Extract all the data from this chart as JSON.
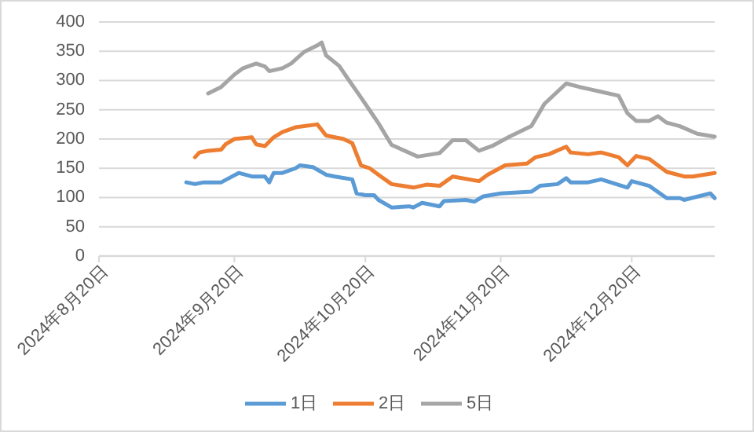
{
  "chart_data": {
    "type": "line",
    "xlim": [
      "2024-08-20",
      "2025-01-08"
    ],
    "xticks": [
      {
        "value": "2024-08-20",
        "label": "2024年8月20日"
      },
      {
        "value": "2024-09-20",
        "label": "2024年9月20日"
      },
      {
        "value": "2024-10-20",
        "label": "2024年10月20日"
      },
      {
        "value": "2024-11-20",
        "label": "2024年11月20日"
      },
      {
        "value": "2024-12-20",
        "label": "2024年12月20日"
      }
    ],
    "ylim": [
      0,
      400
    ],
    "yticks": [
      0,
      50,
      100,
      150,
      200,
      250,
      300,
      350,
      400
    ],
    "grid": "y",
    "legend": "bottom",
    "marker": "none",
    "line_style": "solid",
    "series": [
      {
        "name": "1日",
        "color": "#5b9bd5",
        "x": [
          "2024-09-09",
          "2024-09-11",
          "2024-09-13",
          "2024-09-17",
          "2024-09-19",
          "2024-09-21",
          "2024-09-24",
          "2024-09-27",
          "2024-09-28",
          "2024-09-29",
          "2024-10-01",
          "2024-10-04",
          "2024-10-05",
          "2024-10-08",
          "2024-10-11",
          "2024-10-13",
          "2024-10-17",
          "2024-10-18",
          "2024-10-20",
          "2024-10-22",
          "2024-10-23",
          "2024-10-26",
          "2024-10-30",
          "2024-10-31",
          "2024-11-02",
          "2024-11-06",
          "2024-11-07",
          "2024-11-12",
          "2024-11-14",
          "2024-11-16",
          "2024-11-20",
          "2024-11-27",
          "2024-11-29",
          "2024-12-03",
          "2024-12-05",
          "2024-12-06",
          "2024-12-10",
          "2024-12-13",
          "2024-12-19",
          "2024-12-20",
          "2024-12-24",
          "2024-12-28",
          "2024-12-31",
          "2025-01-01",
          "2025-01-07",
          "2025-01-08"
        ],
        "values": [
          126,
          123,
          126,
          126,
          134,
          142,
          136,
          136,
          126,
          142,
          142,
          150,
          155,
          152,
          139,
          136,
          131,
          107,
          104,
          104,
          96,
          83,
          85,
          83,
          91,
          85,
          94,
          96,
          93,
          102,
          107,
          110,
          120,
          123,
          133,
          126,
          126,
          131,
          117,
          128,
          120,
          99,
          99,
          96,
          107,
          99
        ]
      },
      {
        "name": "2日",
        "color": "#ed7d31",
        "x": [
          "2024-09-11",
          "2024-09-12",
          "2024-09-14",
          "2024-09-17",
          "2024-09-18",
          "2024-09-20",
          "2024-09-24",
          "2024-09-25",
          "2024-09-27",
          "2024-09-29",
          "2024-10-01",
          "2024-10-04",
          "2024-10-09",
          "2024-10-11",
          "2024-10-15",
          "2024-10-17",
          "2024-10-19",
          "2024-10-21",
          "2024-10-23",
          "2024-10-26",
          "2024-10-31",
          "2024-11-03",
          "2024-11-06",
          "2024-11-09",
          "2024-11-15",
          "2024-11-17",
          "2024-11-21",
          "2024-11-26",
          "2024-11-28",
          "2024-12-01",
          "2024-12-05",
          "2024-12-06",
          "2024-12-10",
          "2024-12-13",
          "2024-12-17",
          "2024-12-19",
          "2024-12-21",
          "2024-12-24",
          "2024-12-28",
          "2025-01-01",
          "2025-01-03",
          "2025-01-08"
        ],
        "values": [
          169,
          177,
          180,
          182,
          191,
          200,
          203,
          191,
          188,
          203,
          212,
          220,
          225,
          206,
          200,
          193,
          155,
          150,
          139,
          123,
          117,
          122,
          120,
          136,
          128,
          139,
          155,
          158,
          169,
          174,
          187,
          177,
          174,
          177,
          169,
          155,
          171,
          166,
          144,
          136,
          136,
          142
        ]
      },
      {
        "name": "5日",
        "color": "#a5a5a5",
        "x": [
          "2024-09-14",
          "2024-09-17",
          "2024-09-20",
          "2024-09-22",
          "2024-09-25",
          "2024-09-27",
          "2024-09-28",
          "2024-10-01",
          "2024-10-03",
          "2024-10-06",
          "2024-10-09",
          "2024-10-10",
          "2024-10-11",
          "2024-10-14",
          "2024-10-16",
          "2024-10-19",
          "2024-10-21",
          "2024-10-23",
          "2024-10-26",
          "2024-11-01",
          "2024-11-06",
          "2024-11-09",
          "2024-11-12",
          "2024-11-15",
          "2024-11-18",
          "2024-11-22",
          "2024-11-27",
          "2024-11-30",
          "2024-12-05",
          "2024-12-08",
          "2024-12-11",
          "2024-12-17",
          "2024-12-19",
          "2024-12-21",
          "2024-12-24",
          "2024-12-26",
          "2024-12-28",
          "2024-12-31",
          "2025-01-04",
          "2025-01-08"
        ],
        "values": [
          278,
          289,
          310,
          321,
          329,
          324,
          316,
          321,
          329,
          349,
          360,
          365,
          343,
          325,
          303,
          271,
          249,
          227,
          190,
          170,
          176,
          198,
          198,
          180,
          188,
          204,
          222,
          260,
          295,
          289,
          284,
          274,
          244,
          231,
          231,
          239,
          228,
          222,
          209,
          204
        ]
      }
    ]
  }
}
